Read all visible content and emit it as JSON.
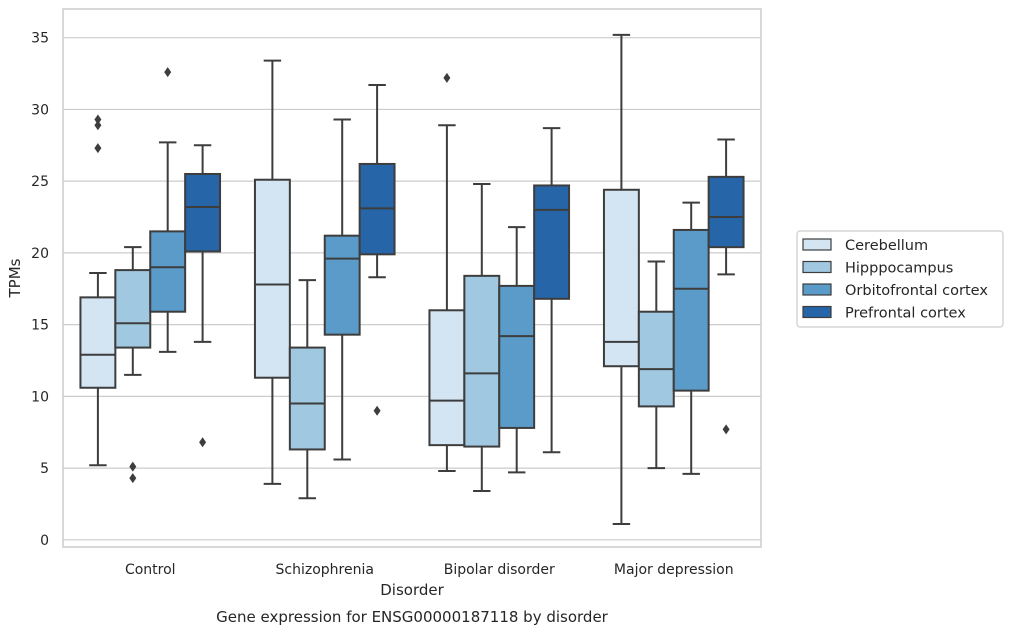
{
  "caption": "Gene expression for ENSG00000187118 by disorder",
  "chart_data": {
    "type": "boxplot",
    "xlabel": "Disorder",
    "ylabel": "TPMs",
    "ylim": [
      -0.5,
      37
    ],
    "yticks": [
      0,
      5,
      10,
      15,
      20,
      25,
      30,
      35
    ],
    "grid": "horizontal",
    "legend_position": "right",
    "categories": [
      "Control",
      "Schizophrenia",
      "Bipolar disorder",
      "Major depression"
    ],
    "series": [
      {
        "name": "Cerebellum",
        "color": "#d3e4f3",
        "boxes": [
          {
            "whisker_low": 5.2,
            "q1": 10.6,
            "median": 12.9,
            "q3": 16.9,
            "whisker_high": 18.6,
            "outliers": [
              27.3,
              28.9,
              29.3
            ]
          },
          {
            "whisker_low": 3.9,
            "q1": 11.3,
            "median": 17.8,
            "q3": 25.1,
            "whisker_high": 33.4,
            "outliers": []
          },
          {
            "whisker_low": 4.8,
            "q1": 6.6,
            "median": 9.7,
            "q3": 16.0,
            "whisker_high": 28.9,
            "outliers": [
              32.2
            ]
          },
          {
            "whisker_low": 1.1,
            "q1": 12.1,
            "median": 13.8,
            "q3": 24.4,
            "whisker_high": 35.2,
            "outliers": []
          }
        ]
      },
      {
        "name": "Hipppocampus",
        "color": "#a0c8e0",
        "boxes": [
          {
            "whisker_low": 11.5,
            "q1": 13.4,
            "median": 15.1,
            "q3": 18.8,
            "whisker_high": 20.4,
            "outliers": [
              4.3,
              5.1
            ]
          },
          {
            "whisker_low": 2.9,
            "q1": 6.3,
            "median": 9.5,
            "q3": 13.4,
            "whisker_high": 18.1,
            "outliers": []
          },
          {
            "whisker_low": 3.4,
            "q1": 6.5,
            "median": 11.6,
            "q3": 18.4,
            "whisker_high": 24.8,
            "outliers": []
          },
          {
            "whisker_low": 5.0,
            "q1": 9.3,
            "median": 11.9,
            "q3": 15.9,
            "whisker_high": 19.4,
            "outliers": []
          }
        ]
      },
      {
        "name": "Orbitofrontal cortex",
        "color": "#5b9bc9",
        "boxes": [
          {
            "whisker_low": 13.1,
            "q1": 15.9,
            "median": 19.0,
            "q3": 21.5,
            "whisker_high": 27.7,
            "outliers": [
              32.6
            ]
          },
          {
            "whisker_low": 5.6,
            "q1": 14.3,
            "median": 19.6,
            "q3": 21.2,
            "whisker_high": 29.3,
            "outliers": []
          },
          {
            "whisker_low": 4.7,
            "q1": 7.8,
            "median": 14.2,
            "q3": 17.7,
            "whisker_high": 21.8,
            "outliers": []
          },
          {
            "whisker_low": 4.6,
            "q1": 10.4,
            "median": 17.5,
            "q3": 21.6,
            "whisker_high": 23.5,
            "outliers": []
          }
        ]
      },
      {
        "name": "Prefrontal cortex",
        "color": "#2565a8",
        "boxes": [
          {
            "whisker_low": 13.8,
            "q1": 20.1,
            "median": 23.2,
            "q3": 25.5,
            "whisker_high": 27.5,
            "outliers": [
              6.8
            ]
          },
          {
            "whisker_low": 18.3,
            "q1": 19.9,
            "median": 23.1,
            "q3": 26.2,
            "whisker_high": 31.7,
            "outliers": [
              9.0
            ]
          },
          {
            "whisker_low": 6.1,
            "q1": 16.8,
            "median": 23.0,
            "q3": 24.7,
            "whisker_high": 28.7,
            "outliers": []
          },
          {
            "whisker_low": 18.5,
            "q1": 20.4,
            "median": 22.5,
            "q3": 25.3,
            "whisker_high": 27.9,
            "outliers": [
              7.7
            ]
          }
        ]
      }
    ]
  }
}
